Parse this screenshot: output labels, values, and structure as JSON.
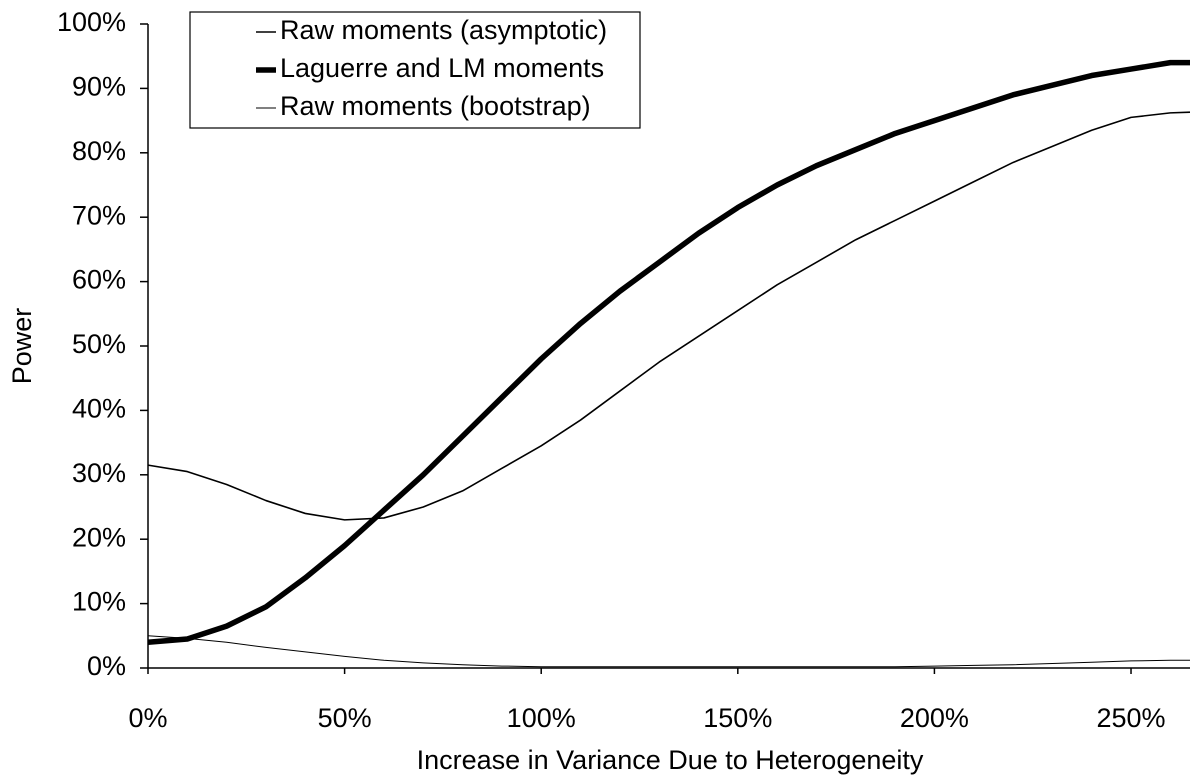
{
  "chart_data": {
    "type": "line",
    "xlabel": "Increase in Variance Due to Heterogeneity",
    "ylabel": "Power",
    "x": [
      0,
      10,
      20,
      30,
      40,
      50,
      60,
      70,
      80,
      90,
      100,
      110,
      120,
      130,
      140,
      150,
      160,
      170,
      180,
      190,
      200,
      210,
      220,
      230,
      240,
      250,
      260,
      265
    ],
    "series": [
      {
        "name": "Raw moments (asymptotic)",
        "color": "#000000",
        "values": [
          31.5,
          30.5,
          28.5,
          26,
          24,
          23,
          23.3,
          25,
          27.5,
          31,
          34.5,
          38.5,
          43,
          47.5,
          51.5,
          55.5,
          59.5,
          63,
          66.5,
          69.5,
          72.5,
          75.5,
          78.5,
          81,
          83.5,
          85.5,
          86.2,
          86.3
        ]
      },
      {
        "name": "Laguerre and LM moments",
        "color": "#000000",
        "values": [
          4,
          4.5,
          6.5,
          9.5,
          14,
          19,
          24.5,
          30,
          36,
          42,
          48,
          53.5,
          58.5,
          63,
          67.5,
          71.5,
          75,
          78,
          80.5,
          83,
          85,
          87,
          89,
          90.5,
          92,
          93,
          94,
          94
        ]
      },
      {
        "name": "Raw moments (bootstrap)",
        "color": "#000000",
        "values": [
          5,
          4.6,
          4,
          3.2,
          2.5,
          1.8,
          1.2,
          0.8,
          0.5,
          0.3,
          0.2,
          0.2,
          0.2,
          0.2,
          0.2,
          0.2,
          0.2,
          0.2,
          0.2,
          0.2,
          0.3,
          0.4,
          0.5,
          0.7,
          0.9,
          1.1,
          1.2,
          1.2
        ]
      }
    ],
    "xlim": [
      0,
      265
    ],
    "xticks": [
      {
        "value": 0,
        "label": "0%"
      },
      {
        "value": 50,
        "label": "50%"
      },
      {
        "value": 100,
        "label": "100%"
      },
      {
        "value": 150,
        "label": "150%"
      },
      {
        "value": 200,
        "label": "200%"
      },
      {
        "value": 250,
        "label": "250%"
      }
    ],
    "ylim": [
      0,
      100
    ],
    "yticks": [
      {
        "value": 0,
        "label": "0%"
      },
      {
        "value": 10,
        "label": "10%"
      },
      {
        "value": 20,
        "label": "20%"
      },
      {
        "value": 30,
        "label": "30%"
      },
      {
        "value": 40,
        "label": "40%"
      },
      {
        "value": 50,
        "label": "50%"
      },
      {
        "value": 60,
        "label": "60%"
      },
      {
        "value": 70,
        "label": "70%"
      },
      {
        "value": 80,
        "label": "80%"
      },
      {
        "value": 90,
        "label": "90%"
      },
      {
        "value": 100,
        "label": "100%"
      }
    ],
    "grid": false,
    "legend": "upper left"
  }
}
